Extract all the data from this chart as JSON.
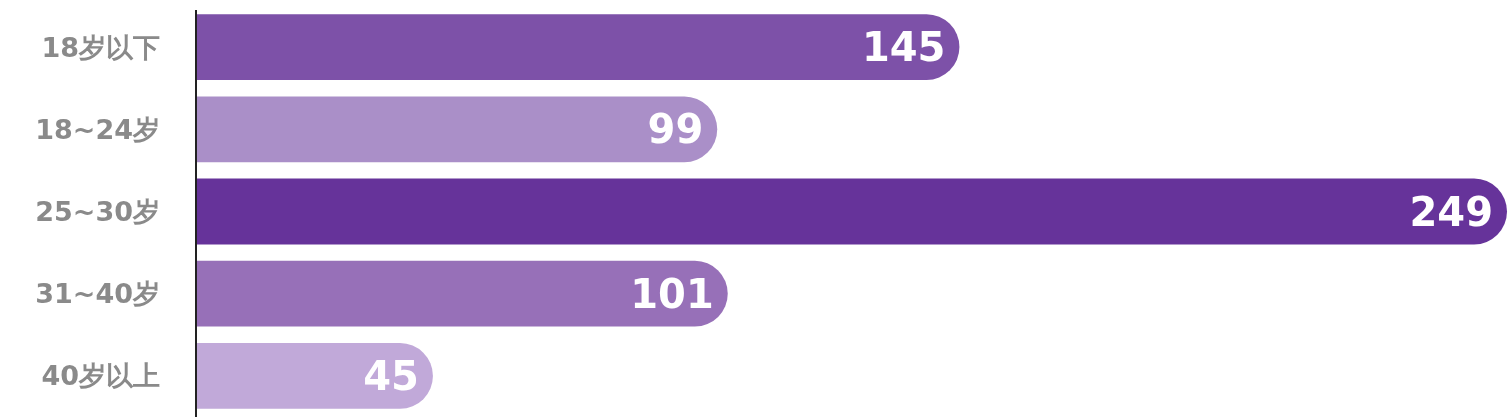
{
  "chart_data": {
    "type": "bar",
    "orientation": "horizontal",
    "categories": [
      "18岁以下",
      "18~24岁",
      "25~30岁",
      "31~40岁",
      "40岁以上"
    ],
    "values": [
      145,
      99,
      249,
      101,
      45
    ],
    "colors": [
      "#7d51a8",
      "#aa8fc8",
      "#66339a",
      "#9770b8",
      "#c1a9d9"
    ],
    "data_labels": true
  }
}
